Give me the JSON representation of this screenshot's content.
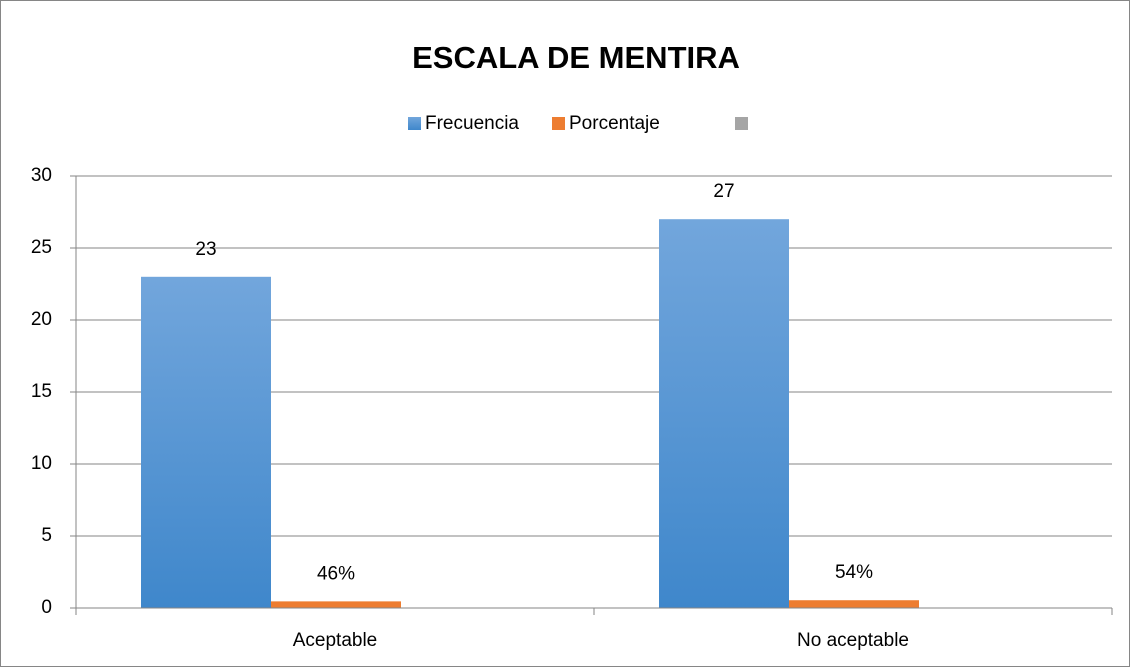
{
  "chart_data": {
    "type": "bar",
    "title": "ESCALA DE MENTIRA",
    "categories": [
      "Aceptable",
      "No aceptable"
    ],
    "series": [
      {
        "name": "Frecuencia",
        "color": "#5b9bd5",
        "values": [
          23,
          27
        ]
      },
      {
        "name": "Porcentaje",
        "color": "#ed7d31",
        "values": [
          0.46,
          0.54
        ],
        "value_labels": [
          "46%",
          "54%"
        ]
      }
    ],
    "ylim": [
      0,
      30
    ],
    "yticks": [
      0,
      5,
      10,
      15,
      20,
      25,
      30
    ],
    "grid": true,
    "legend": "top"
  }
}
